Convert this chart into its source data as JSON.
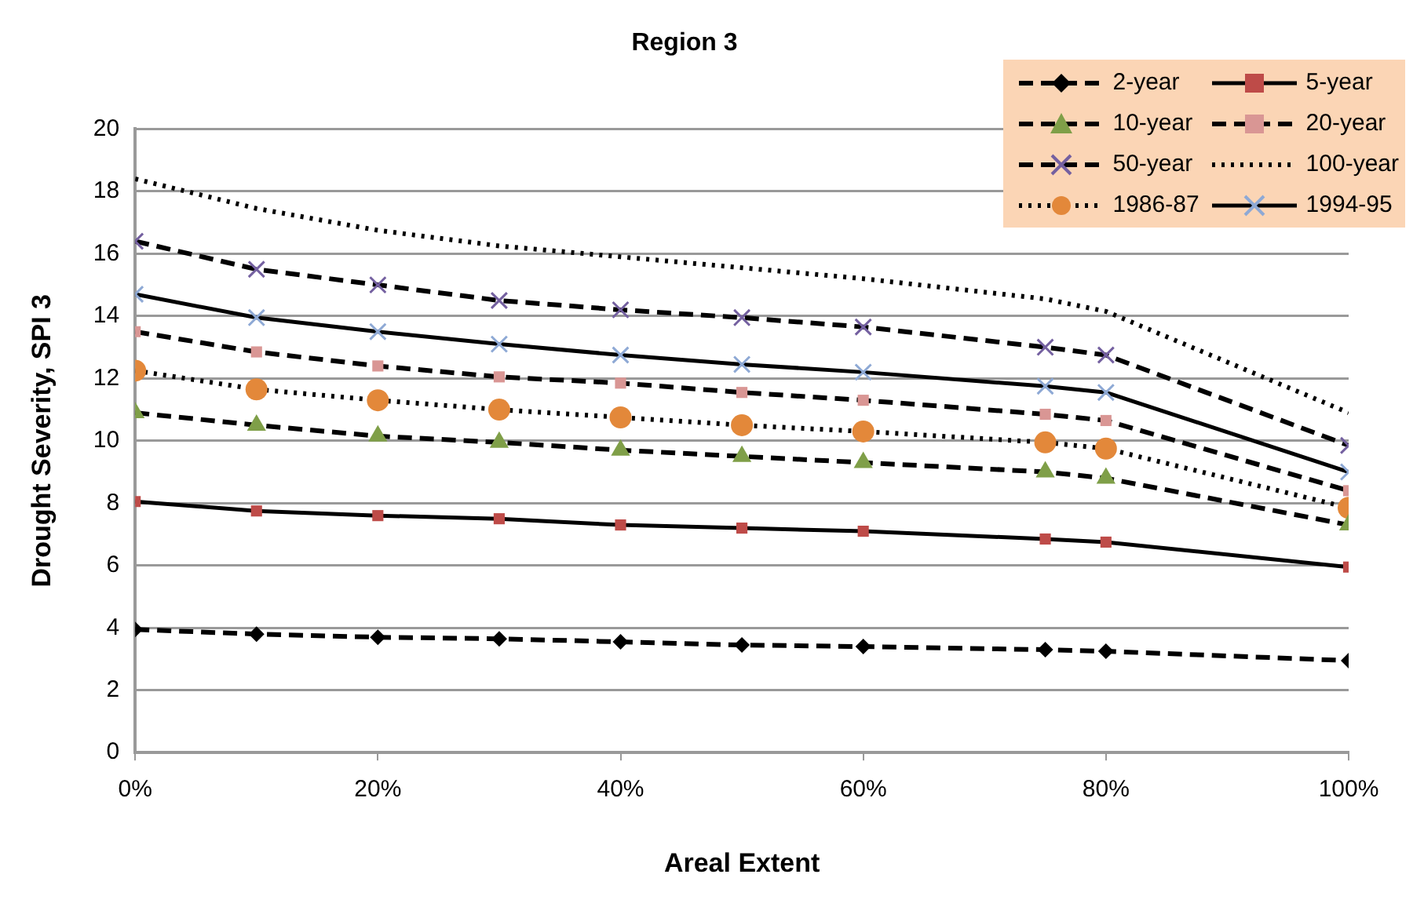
{
  "chart_data": {
    "type": "line",
    "title": "Region 3",
    "xlabel": "Areal Extent",
    "ylabel": "Drought Severity, SPI 3",
    "x": [
      0,
      10,
      20,
      30,
      40,
      50,
      60,
      75,
      80,
      100
    ],
    "series": [
      {
        "name": "2-year",
        "color": "#000000",
        "marker": "diamond",
        "line_style": "dashed",
        "values": [
          3.95,
          3.8,
          3.7,
          3.65,
          3.55,
          3.45,
          3.4,
          3.3,
          3.25,
          2.95
        ]
      },
      {
        "name": "5-year",
        "color": "#be4b48",
        "marker": "square",
        "line_style": "solid",
        "values": [
          8.05,
          7.75,
          7.6,
          7.5,
          7.3,
          7.2,
          7.1,
          6.85,
          6.75,
          5.95
        ]
      },
      {
        "name": "10-year",
        "color": "#7f9f48",
        "marker": "triangle",
        "line_style": "dashed",
        "values": [
          10.9,
          10.5,
          10.15,
          9.95,
          9.7,
          9.5,
          9.3,
          9.0,
          8.8,
          7.3
        ]
      },
      {
        "name": "20-year",
        "color": "#d99694",
        "marker": "square",
        "line_style": "dashed",
        "values": [
          13.5,
          12.85,
          12.4,
          12.05,
          11.85,
          11.55,
          11.3,
          10.85,
          10.65,
          8.4
        ]
      },
      {
        "name": "50-year",
        "color": "#7460a0",
        "marker": "cross",
        "line_style": "dashed",
        "values": [
          16.4,
          15.5,
          15.0,
          14.5,
          14.2,
          13.95,
          13.65,
          13.0,
          12.75,
          9.85
        ]
      },
      {
        "name": "100-year",
        "color": "#000000",
        "marker": "none",
        "line_style": "dotted",
        "values": [
          18.4,
          17.45,
          16.75,
          16.25,
          15.9,
          15.55,
          15.2,
          14.55,
          14.15,
          10.9
        ]
      },
      {
        "name": "1986-87",
        "color": "#e3883a",
        "marker": "circle",
        "line_style": "dotted",
        "values": [
          12.25,
          11.65,
          11.3,
          11.0,
          10.75,
          10.5,
          10.3,
          9.95,
          9.75,
          7.85
        ]
      },
      {
        "name": "1994-95",
        "color": "#8ea9d5",
        "marker": "cross",
        "line_style": "solid",
        "values": [
          14.7,
          13.95,
          13.5,
          13.1,
          12.75,
          12.45,
          12.2,
          11.75,
          11.55,
          9.0
        ]
      }
    ],
    "xlim": [
      0,
      100
    ],
    "xticks": [
      {
        "value": 0,
        "label": "0%"
      },
      {
        "value": 20,
        "label": "20%"
      },
      {
        "value": 40,
        "label": "40%"
      },
      {
        "value": 60,
        "label": "60%"
      },
      {
        "value": 80,
        "label": "80%"
      },
      {
        "value": 100,
        "label": "100%"
      }
    ],
    "ylim": [
      0,
      20
    ],
    "yticks": [
      0,
      2,
      4,
      6,
      8,
      10,
      12,
      14,
      16,
      18,
      20
    ],
    "grid": "y",
    "legend": "top right"
  }
}
